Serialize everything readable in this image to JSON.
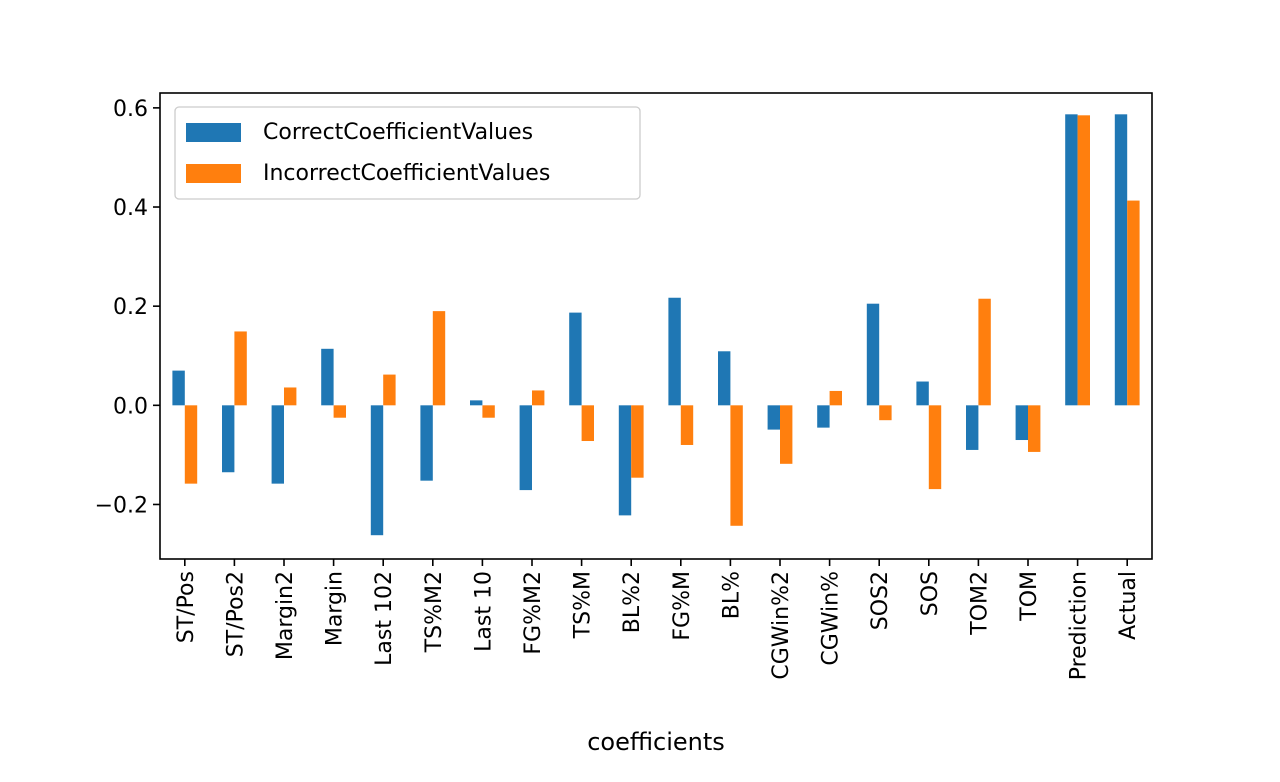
{
  "chart_data": {
    "type": "bar",
    "xlabel": "coefficients",
    "ylabel": "",
    "ylim": [
      -0.31,
      0.63
    ],
    "yticks": [
      -0.2,
      0.0,
      0.2,
      0.4,
      0.6
    ],
    "ytick_labels": [
      "−0.2",
      "0.0",
      "0.2",
      "0.4",
      "0.6"
    ],
    "grid": false,
    "legend_position": "upper-left",
    "categories": [
      "ST/Pos",
      "ST/Pos2",
      "Margin2",
      "Margin",
      "Last 102",
      "TS%M2",
      "Last 10",
      "FG%M2",
      "TS%M",
      "BL%2",
      "FG%M",
      "BL%",
      "CGWin%2",
      "CGWin%",
      "SOS2",
      "SOS",
      "TOM2",
      "TOM",
      "Prediction",
      "Actual"
    ],
    "series": [
      {
        "name": "CorrectCoefficientValues",
        "color": "#1f77b4",
        "values": [
          0.07,
          -0.135,
          -0.158,
          0.114,
          -0.262,
          -0.152,
          0.01,
          -0.171,
          0.187,
          -0.222,
          0.217,
          0.109,
          -0.049,
          -0.045,
          0.205,
          0.048,
          -0.09,
          -0.07,
          0.587,
          0.587
        ]
      },
      {
        "name": "IncorrectCoefficientValues",
        "color": "#ff7f0e",
        "values": [
          -0.158,
          0.149,
          0.036,
          -0.025,
          0.062,
          0.19,
          -0.025,
          0.03,
          -0.072,
          -0.146,
          -0.08,
          -0.243,
          -0.118,
          0.029,
          -0.03,
          -0.169,
          0.215,
          -0.094,
          0.585,
          0.413
        ]
      }
    ]
  }
}
